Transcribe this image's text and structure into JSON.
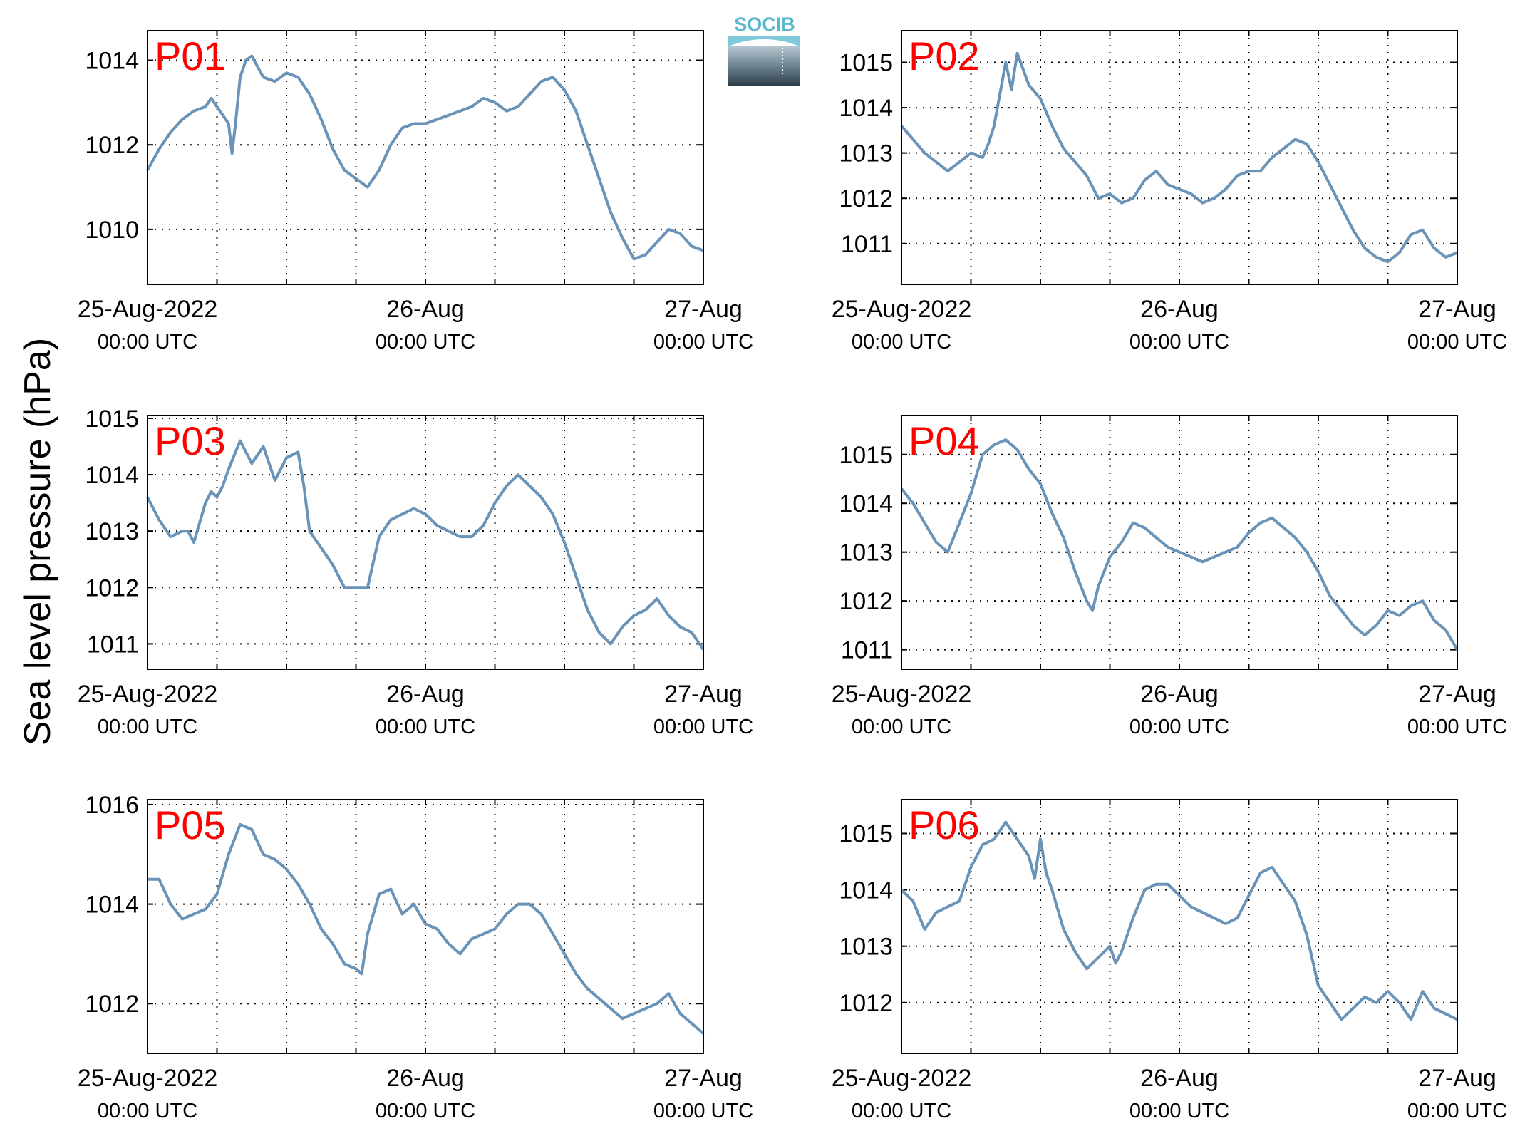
{
  "figure": {
    "ylabel": "Sea level pressure (hPa)",
    "logo_text": "SOCIB",
    "colors": {
      "line": "#6a93b8",
      "label": "#ff0000",
      "axis": "#000000",
      "grid": "#000000"
    }
  },
  "chart_data": [
    {
      "type": "line",
      "label": "P01",
      "x_ticks": [
        {
          "date": "25-Aug-2022",
          "time": "00:00 UTC"
        },
        {
          "date": "26-Aug",
          "time": "00:00 UTC"
        },
        {
          "date": "27-Aug",
          "time": "00:00 UTC"
        }
      ],
      "xlim_hours": [
        0,
        48
      ],
      "grid": true,
      "ylim": [
        1008.7,
        1014.7
      ],
      "yticks": [
        1010,
        1012,
        1014
      ],
      "series": [
        {
          "x_hours": [
            0,
            1,
            2,
            3,
            4,
            5,
            5.5,
            6,
            7,
            7.3,
            7.6,
            8,
            8.5,
            9,
            10,
            11,
            12,
            13,
            14,
            15,
            16,
            17,
            17.5,
            18,
            19,
            20,
            21,
            22,
            23,
            24,
            25,
            26,
            27,
            28,
            29,
            30,
            31,
            32,
            33,
            34,
            35,
            36,
            37,
            38,
            39,
            40,
            41,
            42,
            43,
            44,
            45,
            46,
            47,
            48
          ],
          "y": [
            1011.4,
            1011.9,
            1012.3,
            1012.6,
            1012.8,
            1012.9,
            1013.1,
            1012.9,
            1012.5,
            1011.8,
            1012.5,
            1013.6,
            1014.0,
            1014.1,
            1013.6,
            1013.5,
            1013.7,
            1013.6,
            1013.2,
            1012.6,
            1011.9,
            1011.4,
            1011.3,
            1011.2,
            1011.0,
            1011.4,
            1012.0,
            1012.4,
            1012.5,
            1012.5,
            1012.6,
            1012.7,
            1012.8,
            1012.9,
            1013.1,
            1013.0,
            1012.8,
            1012.9,
            1013.2,
            1013.5,
            1013.6,
            1013.3,
            1012.8,
            1012.0,
            1011.2,
            1010.4,
            1009.8,
            1009.3,
            1009.4,
            1009.7,
            1010.0,
            1009.9,
            1009.6,
            1009.5
          ]
        }
      ]
    },
    {
      "type": "line",
      "label": "P02",
      "x_ticks": [
        {
          "date": "25-Aug-2022",
          "time": "00:00 UTC"
        },
        {
          "date": "26-Aug",
          "time": "00:00 UTC"
        },
        {
          "date": "27-Aug",
          "time": "00:00 UTC"
        }
      ],
      "xlim_hours": [
        0,
        48
      ],
      "grid": true,
      "ylim": [
        1010.1,
        1015.7
      ],
      "yticks": [
        1011,
        1012,
        1013,
        1014,
        1015
      ],
      "series": [
        {
          "x_hours": [
            0,
            1,
            2,
            3,
            4,
            5,
            6,
            7,
            7.5,
            8,
            9,
            9.5,
            10,
            11,
            12,
            13,
            14,
            15,
            16,
            17,
            18,
            19,
            20,
            21,
            22,
            23,
            24,
            25,
            26,
            27,
            28,
            29,
            30,
            31,
            32,
            33,
            34,
            35,
            36,
            37,
            38,
            39,
            40,
            41,
            42,
            43,
            44,
            45,
            46,
            47,
            48
          ],
          "y": [
            1013.6,
            1013.3,
            1013.0,
            1012.8,
            1012.6,
            1012.8,
            1013.0,
            1012.9,
            1013.2,
            1013.6,
            1015.0,
            1014.4,
            1015.2,
            1014.5,
            1014.2,
            1013.6,
            1013.1,
            1012.8,
            1012.5,
            1012.0,
            1012.1,
            1011.9,
            1012.0,
            1012.4,
            1012.6,
            1012.3,
            1012.2,
            1012.1,
            1011.9,
            1012.0,
            1012.2,
            1012.5,
            1012.6,
            1012.6,
            1012.9,
            1013.1,
            1013.3,
            1013.2,
            1012.8,
            1012.3,
            1011.8,
            1011.3,
            1010.9,
            1010.7,
            1010.6,
            1010.8,
            1011.2,
            1011.3,
            1010.9,
            1010.7,
            1010.8
          ]
        }
      ]
    },
    {
      "type": "line",
      "label": "P03",
      "x_ticks": [
        {
          "date": "25-Aug-2022",
          "time": "00:00 UTC"
        },
        {
          "date": "26-Aug",
          "time": "00:00 UTC"
        },
        {
          "date": "27-Aug",
          "time": "00:00 UTC"
        }
      ],
      "xlim_hours": [
        0,
        48
      ],
      "grid": true,
      "ylim": [
        1010.55,
        1015.05
      ],
      "yticks": [
        1011,
        1012,
        1013,
        1014,
        1015
      ],
      "series": [
        {
          "x_hours": [
            0,
            1,
            2,
            3,
            3.5,
            4,
            5,
            5.5,
            6,
            6.5,
            7,
            8,
            9,
            10,
            11,
            12,
            13,
            13.5,
            14,
            15,
            16,
            17,
            18,
            19,
            20,
            21,
            22,
            23,
            24,
            25,
            26,
            27,
            28,
            29,
            30,
            31,
            32,
            33,
            34,
            35,
            36,
            37,
            38,
            39,
            40,
            41,
            42,
            43,
            44,
            45,
            46,
            47,
            48
          ],
          "y": [
            1013.6,
            1013.2,
            1012.9,
            1013.0,
            1013.0,
            1012.8,
            1013.5,
            1013.7,
            1013.6,
            1013.8,
            1014.1,
            1014.6,
            1014.2,
            1014.5,
            1013.9,
            1014.3,
            1014.4,
            1013.8,
            1013.0,
            1012.7,
            1012.4,
            1012.0,
            1012.0,
            1012.0,
            1012.9,
            1013.2,
            1013.3,
            1013.4,
            1013.3,
            1013.1,
            1013.0,
            1012.9,
            1012.9,
            1013.1,
            1013.5,
            1013.8,
            1014.0,
            1013.8,
            1013.6,
            1013.3,
            1012.8,
            1012.2,
            1011.6,
            1011.2,
            1011.0,
            1011.3,
            1011.5,
            1011.6,
            1011.8,
            1011.5,
            1011.3,
            1011.2,
            1010.9
          ]
        }
      ]
    },
    {
      "type": "line",
      "label": "P04",
      "x_ticks": [
        {
          "date": "25-Aug-2022",
          "time": "00:00 UTC"
        },
        {
          "date": "26-Aug",
          "time": "00:00 UTC"
        },
        {
          "date": "27-Aug",
          "time": "00:00 UTC"
        }
      ],
      "xlim_hours": [
        0,
        48
      ],
      "grid": true,
      "ylim": [
        1010.6,
        1015.8
      ],
      "yticks": [
        1011,
        1012,
        1013,
        1014,
        1015
      ],
      "series": [
        {
          "x_hours": [
            0,
            1,
            2,
            3,
            4,
            5,
            6,
            7,
            8,
            9,
            10,
            11,
            12,
            13,
            14,
            15,
            16,
            16.5,
            17,
            17.5,
            18,
            19,
            20,
            21,
            22,
            23,
            24,
            25,
            26,
            27,
            28,
            29,
            30,
            31,
            32,
            33,
            34,
            35,
            36,
            37,
            38,
            39,
            40,
            41,
            42,
            43,
            44,
            45,
            46,
            47,
            48
          ],
          "y": [
            1014.3,
            1014.0,
            1013.6,
            1013.2,
            1013.0,
            1013.6,
            1014.2,
            1015.0,
            1015.2,
            1015.3,
            1015.1,
            1014.7,
            1014.4,
            1013.8,
            1013.3,
            1012.6,
            1012.0,
            1011.8,
            1012.3,
            1012.6,
            1012.9,
            1013.2,
            1013.6,
            1013.5,
            1013.3,
            1013.1,
            1013.0,
            1012.9,
            1012.8,
            1012.9,
            1013.0,
            1013.1,
            1013.4,
            1013.6,
            1013.7,
            1013.5,
            1013.3,
            1013.0,
            1012.6,
            1012.1,
            1011.8,
            1011.5,
            1011.3,
            1011.5,
            1011.8,
            1011.7,
            1011.9,
            1012.0,
            1011.6,
            1011.4,
            1011.0
          ]
        }
      ]
    },
    {
      "type": "line",
      "label": "P05",
      "x_ticks": [
        {
          "date": "25-Aug-2022",
          "time": "00:00 UTC"
        },
        {
          "date": "26-Aug",
          "time": "00:00 UTC"
        },
        {
          "date": "27-Aug",
          "time": "00:00 UTC"
        }
      ],
      "xlim_hours": [
        0,
        48
      ],
      "grid": true,
      "ylim": [
        1011.0,
        1016.1
      ],
      "yticks": [
        1012,
        1014,
        1016
      ],
      "series": [
        {
          "x_hours": [
            0,
            1,
            2,
            3,
            4,
            5,
            6,
            7,
            8,
            9,
            10,
            11,
            12,
            13,
            14,
            15,
            16,
            17,
            18,
            18.5,
            19,
            20,
            21,
            22,
            23,
            24,
            25,
            26,
            27,
            28,
            29,
            30,
            31,
            32,
            33,
            34,
            35,
            36,
            37,
            38,
            39,
            40,
            41,
            42,
            43,
            44,
            45,
            46,
            47,
            48
          ],
          "y": [
            1014.5,
            1014.5,
            1014.0,
            1013.7,
            1013.8,
            1013.9,
            1014.2,
            1015.0,
            1015.6,
            1015.5,
            1015.0,
            1014.9,
            1014.7,
            1014.4,
            1014.0,
            1013.5,
            1013.2,
            1012.8,
            1012.7,
            1012.6,
            1013.4,
            1014.2,
            1014.3,
            1013.8,
            1014.0,
            1013.6,
            1013.5,
            1013.2,
            1013.0,
            1013.3,
            1013.4,
            1013.5,
            1013.8,
            1014.0,
            1014.0,
            1013.8,
            1013.4,
            1013.0,
            1012.6,
            1012.3,
            1012.1,
            1011.9,
            1011.7,
            1011.8,
            1011.9,
            1012.0,
            1012.2,
            1011.8,
            1011.6,
            1011.4
          ]
        }
      ]
    },
    {
      "type": "line",
      "label": "P06",
      "x_ticks": [
        {
          "date": "25-Aug-2022",
          "time": "00:00 UTC"
        },
        {
          "date": "26-Aug",
          "time": "00:00 UTC"
        },
        {
          "date": "27-Aug",
          "time": "00:00 UTC"
        }
      ],
      "xlim_hours": [
        0,
        48
      ],
      "grid": true,
      "ylim": [
        1011.1,
        1015.6
      ],
      "yticks": [
        1012,
        1013,
        1014,
        1015
      ],
      "series": [
        {
          "x_hours": [
            0,
            1,
            2,
            3,
            4,
            5,
            6,
            7,
            8,
            9,
            10,
            11,
            11.5,
            12,
            12.5,
            13,
            14,
            15,
            16,
            17,
            18,
            18.5,
            19,
            20,
            21,
            22,
            23,
            24,
            25,
            26,
            27,
            28,
            29,
            30,
            31,
            32,
            33,
            34,
            35,
            36,
            37,
            38,
            39,
            40,
            41,
            42,
            43,
            44,
            45,
            46,
            47,
            48
          ],
          "y": [
            1014.0,
            1013.8,
            1013.3,
            1013.6,
            1013.7,
            1013.8,
            1014.4,
            1014.8,
            1014.9,
            1015.2,
            1014.9,
            1014.6,
            1014.2,
            1014.9,
            1014.3,
            1014.0,
            1013.3,
            1012.9,
            1012.6,
            1012.8,
            1013.0,
            1012.7,
            1012.9,
            1013.5,
            1014.0,
            1014.1,
            1014.1,
            1013.9,
            1013.7,
            1013.6,
            1013.5,
            1013.4,
            1013.5,
            1013.9,
            1014.3,
            1014.4,
            1014.1,
            1013.8,
            1013.2,
            1012.3,
            1012.0,
            1011.7,
            1011.9,
            1012.1,
            1012.0,
            1012.2,
            1012.0,
            1011.7,
            1012.2,
            1011.9,
            1011.8,
            1011.7
          ]
        }
      ]
    }
  ]
}
